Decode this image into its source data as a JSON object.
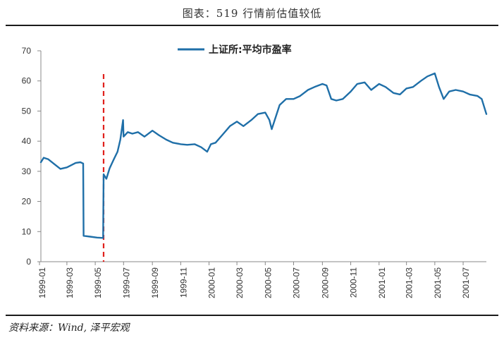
{
  "title": "图表：519 行情前估值较低",
  "source": "资料来源：Wind, 泽平宏观",
  "colors": {
    "series": "#1f6fa8",
    "marker": "#e0201c",
    "axis": "#888888"
  },
  "chart_data": {
    "type": "line",
    "title": "图表：519 行情前估值较低",
    "xlabel": "",
    "ylabel": "",
    "ylim": [
      0,
      70
    ],
    "yticks": [
      0,
      10,
      20,
      30,
      40,
      50,
      60,
      70
    ],
    "grid": false,
    "legend_position": "top-center",
    "xticks": [
      "1999-01",
      "1999-03",
      "1999-05",
      "1999-07",
      "1999-09",
      "1999-11",
      "2000-01",
      "2000-03",
      "2000-05",
      "2000-07",
      "2000-09",
      "2000-11",
      "2001-01",
      "2001-03",
      "2001-05",
      "2001-07"
    ],
    "marker_line": {
      "x": "1999-05-19",
      "style": "dashed",
      "color": "#e0201c"
    },
    "series": [
      {
        "name": "上证所:平均市盈率",
        "x": [
          "1999-01-04",
          "1999-01-10",
          "1999-01-20",
          "1999-02-01",
          "1999-02-15",
          "1999-03-01",
          "1999-03-10",
          "1999-03-20",
          "1999-03-30",
          "1999-04-05",
          "1999-04-06",
          "1999-04-20",
          "1999-05-05",
          "1999-05-18",
          "1999-05-19",
          "1999-05-25",
          "1999-06-01",
          "1999-06-10",
          "1999-06-18",
          "1999-06-24",
          "1999-06-30",
          "1999-07-01",
          "1999-07-10",
          "1999-07-20",
          "1999-08-01",
          "1999-08-15",
          "1999-09-01",
          "1999-09-15",
          "1999-10-01",
          "1999-10-15",
          "1999-11-01",
          "1999-11-15",
          "1999-12-01",
          "1999-12-15",
          "1999-12-28",
          "2000-01-05",
          "2000-01-15",
          "2000-02-01",
          "2000-02-15",
          "2000-03-01",
          "2000-03-15",
          "2000-04-01",
          "2000-04-15",
          "2000-05-01",
          "2000-05-10",
          "2000-05-15",
          "2000-06-01",
          "2000-06-15",
          "2000-07-01",
          "2000-07-15",
          "2000-08-01",
          "2000-08-15",
          "2000-09-01",
          "2000-09-10",
          "2000-09-20",
          "2000-10-01",
          "2000-10-15",
          "2000-11-01",
          "2000-11-15",
          "2000-12-01",
          "2000-12-15",
          "2001-01-01",
          "2001-01-15",
          "2001-02-01",
          "2001-02-15",
          "2001-03-01",
          "2001-03-15",
          "2001-04-01",
          "2001-04-15",
          "2001-05-01",
          "2001-05-10",
          "2001-05-20",
          "2001-06-01",
          "2001-06-15",
          "2001-07-01",
          "2001-07-15",
          "2001-08-01",
          "2001-08-10",
          "2001-08-20"
        ],
        "values": [
          33.0,
          34.5,
          34.0,
          32.5,
          30.8,
          31.3,
          32.0,
          32.8,
          33.0,
          32.6,
          8.6,
          8.3,
          8.0,
          7.9,
          29.0,
          27.5,
          31.0,
          34.0,
          36.5,
          40.5,
          47.0,
          41.5,
          43.0,
          42.5,
          43.0,
          41.5,
          43.5,
          42.0,
          40.5,
          39.5,
          39.0,
          38.8,
          39.0,
          38.0,
          36.5,
          39.0,
          39.5,
          42.5,
          45.0,
          46.5,
          45.0,
          47.0,
          49.0,
          49.5,
          47.0,
          44.0,
          52.0,
          54.0,
          54.0,
          55.0,
          57.0,
          58.0,
          59.0,
          58.5,
          54.0,
          53.5,
          54.0,
          56.5,
          59.0,
          59.5,
          57.0,
          59.0,
          58.0,
          56.0,
          55.5,
          57.5,
          58.0,
          60.0,
          61.5,
          62.5,
          58.0,
          54.0,
          56.5,
          57.0,
          56.5,
          55.5,
          55.0,
          54.0,
          49.0
        ]
      }
    ]
  }
}
